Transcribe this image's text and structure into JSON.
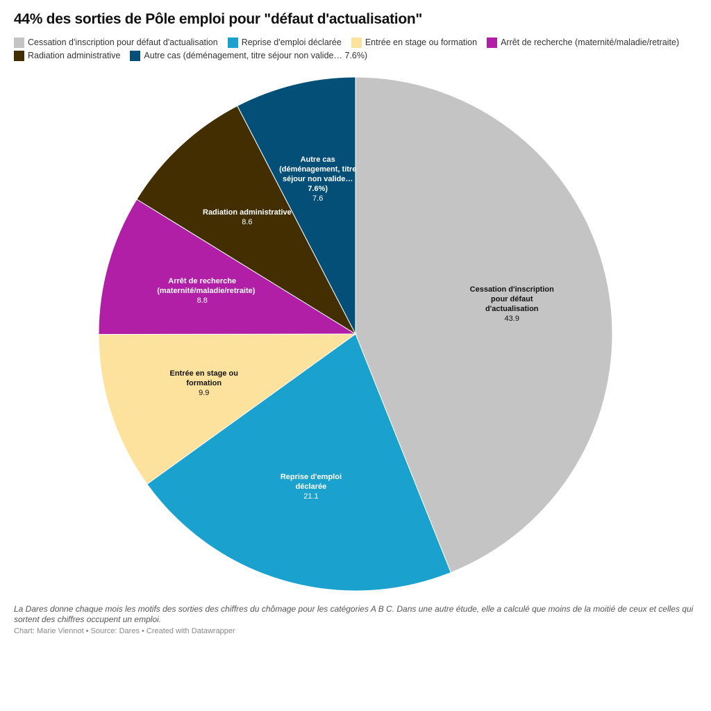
{
  "title": "44% des sorties de Pôle emploi pour \"défaut d'actualisation\"",
  "chart_data": {
    "type": "pie",
    "title": "44% des sorties de Pôle emploi pour \"défaut d'actualisation\"",
    "legend_position": "top",
    "slices": [
      {
        "label": "Cessation d'inscription pour défaut d'actualisation",
        "value": 43.9,
        "color": "#c4c4c4",
        "text_color": "#111111"
      },
      {
        "label": "Reprise d'emploi déclarée",
        "value": 21.1,
        "color": "#1aa1cd",
        "text_color": "#ffffff"
      },
      {
        "label": "Entrée en stage ou formation",
        "value": 9.9,
        "color": "#fde29d",
        "text_color": "#111111"
      },
      {
        "label": "Arrêt de recherche (maternité/maladie/retraite)",
        "value": 8.8,
        "color": "#b01fa6",
        "text_color": "#ffffff"
      },
      {
        "label": "Radiation administrative",
        "value": 8.6,
        "color": "#432e02",
        "text_color": "#ffffff"
      },
      {
        "label": "Autre cas (déménagement, titre séjour non valide… 7.6%)",
        "value": 7.6,
        "color": "#034f77",
        "text_color": "#ffffff"
      }
    ]
  },
  "notes": "La Dares donne chaque mois les motifs des sorties des chiffres du chômage pour les catégories A B C. Dans une autre étude, elle a calculé que moins de la moitié de ceux et celles qui sortent des chiffres occupent un emploi.",
  "credit": "Chart: Marie Viennot • Source: Dares • Created with Datawrapper"
}
